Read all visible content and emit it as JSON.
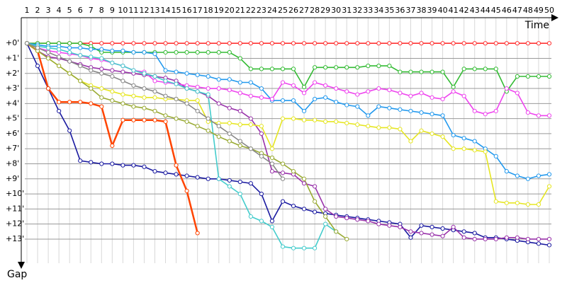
{
  "chart_data": {
    "type": "line",
    "x_label": "Time",
    "y_label": "Gap",
    "x": [
      1,
      2,
      3,
      4,
      5,
      6,
      7,
      8,
      9,
      10,
      11,
      12,
      13,
      14,
      15,
      16,
      17,
      18,
      19,
      20,
      21,
      22,
      23,
      24,
      25,
      26,
      27,
      28,
      29,
      30,
      31,
      32,
      33,
      34,
      35,
      36,
      37,
      38,
      39,
      40,
      41,
      42,
      43,
      44,
      45,
      46,
      47,
      48,
      49,
      50
    ],
    "xticks": [
      1,
      2,
      3,
      4,
      5,
      6,
      7,
      8,
      9,
      10,
      11,
      12,
      13,
      14,
      15,
      16,
      17,
      18,
      19,
      20,
      21,
      22,
      23,
      24,
      25,
      26,
      27,
      28,
      29,
      30,
      31,
      32,
      33,
      34,
      35,
      36,
      37,
      38,
      39,
      40,
      41,
      42,
      43,
      44,
      45,
      46,
      47,
      48,
      49,
      50
    ],
    "xlim": [
      0.8,
      50.2
    ],
    "ylim": [
      -1.7,
      14.6
    ],
    "yticks": [
      {
        "value": 0,
        "label": "+0'"
      },
      {
        "value": 1,
        "label": "+1'"
      },
      {
        "value": 2,
        "label": "+2'"
      },
      {
        "value": 3,
        "label": "+3'"
      },
      {
        "value": 4,
        "label": "+4'"
      },
      {
        "value": 5,
        "label": "+5'"
      },
      {
        "value": 6,
        "label": "+6'"
      },
      {
        "value": 7,
        "label": "+7'"
      },
      {
        "value": 8,
        "label": "+8'"
      },
      {
        "value": 9,
        "label": "+9'"
      },
      {
        "value": 10,
        "label": "+10'"
      },
      {
        "value": 11,
        "label": "+11'"
      },
      {
        "value": 12,
        "label": "+12'"
      },
      {
        "value": 13,
        "label": "+13'"
      }
    ],
    "y_inverted": true,
    "grid": true,
    "series": [
      {
        "color": "#ff3333",
        "values": [
          0,
          0,
          0,
          0,
          0,
          0,
          0,
          0,
          0,
          0,
          0,
          0,
          0,
          0,
          0,
          0,
          0,
          0,
          0,
          0,
          0,
          0,
          0,
          0,
          0,
          0,
          0,
          0,
          0,
          0,
          0,
          0,
          0,
          0,
          0,
          0,
          0,
          0,
          0,
          0,
          0,
          0,
          0,
          0,
          0,
          0,
          0,
          0,
          0,
          0
        ]
      },
      {
        "color": "#33bb33",
        "values": [
          0,
          0,
          0,
          0,
          0,
          0,
          0.2,
          0.6,
          0.6,
          0.6,
          0.6,
          0.6,
          0.6,
          0.6,
          0.6,
          0.6,
          0.6,
          0.6,
          0.6,
          0.6,
          1.0,
          1.7,
          1.7,
          1.7,
          1.7,
          1.7,
          2.9,
          1.6,
          1.6,
          1.6,
          1.6,
          1.6,
          1.5,
          1.5,
          1.5,
          1.9,
          1.9,
          1.9,
          1.9,
          1.9,
          2.9,
          1.7,
          1.7,
          1.7,
          1.7,
          3.2,
          2.2,
          2.2,
          2.2,
          2.2
        ]
      },
      {
        "color": "#2299ee",
        "values": [
          0,
          0.1,
          0.2,
          0.2,
          0.3,
          0.3,
          0.4,
          0.4,
          0.5,
          0.5,
          0.6,
          0.6,
          0.7,
          1.8,
          1.9,
          2.0,
          2.1,
          2.2,
          2.4,
          2.4,
          2.6,
          2.6,
          3.0,
          3.8,
          3.8,
          3.8,
          4.5,
          3.7,
          3.6,
          3.9,
          4.1,
          4.2,
          4.8,
          4.2,
          4.3,
          4.4,
          4.5,
          4.6,
          4.7,
          4.8,
          6.1,
          6.3,
          6.5,
          7.0,
          7.5,
          8.5,
          8.8,
          9.0,
          8.8,
          8.7
        ]
      },
      {
        "color": "#1a1aa0",
        "values": [
          0,
          1.5,
          3,
          4.5,
          5.8,
          7.8,
          7.9,
          8.0,
          8.0,
          8.1,
          8.1,
          8.2,
          8.5,
          8.6,
          8.7,
          8.8,
          8.9,
          9.0,
          9.0,
          9.1,
          9.2,
          9.3,
          10.0,
          11.8,
          10.5,
          10.8,
          11.0,
          11.2,
          11.3,
          11.4,
          11.5,
          11.6,
          11.7,
          11.8,
          11.9,
          12.0,
          12.9,
          12.1,
          12.2,
          12.3,
          12.4,
          12.5,
          12.6,
          12.9,
          12.9,
          13.0,
          13.1,
          13.2,
          13.3,
          13.4
        ]
      },
      {
        "color": "#ff4400",
        "values": [
          0,
          0.5,
          3.0,
          3.9,
          3.9,
          3.9,
          4.0,
          4.2,
          6.8,
          5.1,
          5.1,
          5.1,
          5.1,
          5.2,
          8.1,
          9.8,
          12.6,
          null,
          null,
          null,
          null,
          null,
          null,
          null,
          null,
          null,
          null,
          null,
          null,
          null,
          null,
          null,
          null,
          null,
          null,
          null,
          null,
          null,
          null,
          null,
          null,
          null,
          null,
          null,
          null,
          null,
          null,
          null,
          null,
          null
        ]
      },
      {
        "color": "#9933aa",
        "values": [
          0,
          0.5,
          0.9,
          1.0,
          1.2,
          1.4,
          1.6,
          1.7,
          1.8,
          1.9,
          2.0,
          2.1,
          2.2,
          2.3,
          2.5,
          3.0,
          3.2,
          3.5,
          4.0,
          4.3,
          4.5,
          5.0,
          6.0,
          8.5,
          8.6,
          8.7,
          9.3,
          9.5,
          11.0,
          11.5,
          11.6,
          11.7,
          11.8,
          12.0,
          12.1,
          12.2,
          12.5,
          12.6,
          12.7,
          12.8,
          12.2,
          12.9,
          13.0,
          13.0,
          13.0,
          12.9,
          12.9,
          13.0,
          13.0,
          13.0
        ]
      },
      {
        "color": "#ee44ee",
        "values": [
          0,
          0.3,
          0.5,
          0.6,
          0.7,
          0.8,
          1.0,
          1.1,
          1.3,
          1.5,
          1.8,
          1.9,
          2.5,
          2.6,
          2.7,
          2.8,
          2.9,
          3.0,
          3.0,
          3.1,
          3.3,
          3.5,
          3.6,
          3.7,
          2.6,
          2.8,
          3.3,
          2.6,
          2.8,
          3.0,
          3.2,
          3.4,
          3.2,
          3.0,
          3.1,
          3.3,
          3.5,
          3.3,
          3.6,
          3.7,
          3.2,
          3.5,
          4.5,
          4.7,
          4.5,
          3.0,
          3.3,
          4.6,
          4.8,
          4.8
        ]
      },
      {
        "color": "#e6e622",
        "values": [
          0,
          0.5,
          1.0,
          1.5,
          2.0,
          2.5,
          2.8,
          3.0,
          3.2,
          3.4,
          3.5,
          3.6,
          3.6,
          3.7,
          3.7,
          3.8,
          3.8,
          5.2,
          5.3,
          5.3,
          5.4,
          5.4,
          5.5,
          7.0,
          5.0,
          5.0,
          5.1,
          5.1,
          5.2,
          5.2,
          5.3,
          5.4,
          5.5,
          5.6,
          5.6,
          5.7,
          6.5,
          5.8,
          6.0,
          6.2,
          7.0,
          7.0,
          7.1,
          7.2,
          10.5,
          10.6,
          10.6,
          10.7,
          10.7,
          9.5
        ]
      },
      {
        "color": "#44cccc",
        "values": [
          0,
          0.2,
          0.3,
          0.4,
          0.6,
          0.8,
          0.9,
          1.0,
          1.3,
          1.5,
          1.8,
          2.0,
          2.2,
          2.5,
          2.7,
          3.0,
          3.2,
          3.4,
          9.0,
          9.5,
          10.0,
          11.5,
          11.8,
          12.2,
          13.5,
          13.6,
          13.6,
          13.6,
          12.0,
          12.5,
          null,
          null,
          null,
          null,
          null,
          null,
          null,
          null,
          null,
          null,
          null,
          null,
          null,
          null,
          null,
          null,
          null,
          null,
          null,
          null
        ]
      },
      {
        "color": "#99aa33",
        "values": [
          0,
          0.5,
          1.0,
          1.5,
          2.0,
          2.5,
          3.0,
          3.6,
          3.8,
          4.0,
          4.2,
          4.3,
          4.5,
          4.8,
          5.0,
          5.2,
          5.5,
          5.8,
          6.2,
          6.5,
          6.8,
          7.0,
          7.3,
          7.6,
          8.0,
          8.5,
          9.0,
          10.5,
          11.5,
          12.5,
          13.0,
          null,
          null,
          null,
          null,
          null,
          null,
          null,
          null,
          null,
          null,
          null,
          null,
          null,
          null,
          null,
          null,
          null,
          null,
          null
        ]
      },
      {
        "color": "#888888",
        "values": [
          0,
          0.3,
          0.6,
          0.9,
          1.2,
          1.5,
          1.8,
          2.0,
          2.2,
          2.5,
          2.8,
          3.0,
          3.2,
          3.5,
          3.7,
          4.0,
          4.5,
          5.0,
          5.5,
          6.0,
          6.5,
          7.0,
          7.5,
          8.0,
          9.0,
          null,
          null,
          null,
          null,
          null,
          null,
          null,
          null,
          null,
          null,
          null,
          null,
          null,
          null,
          null,
          null,
          null,
          null,
          null,
          null,
          null,
          null,
          null,
          null,
          null
        ]
      }
    ]
  }
}
